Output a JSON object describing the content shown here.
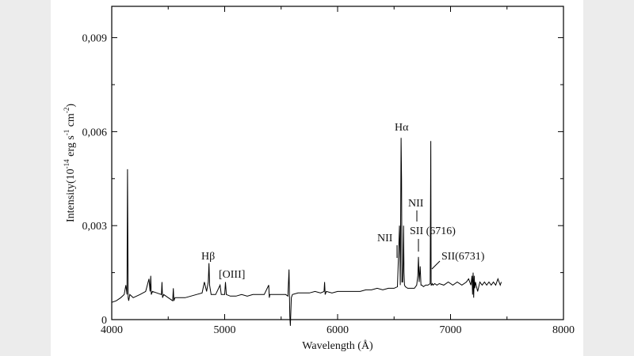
{
  "chart_data": {
    "type": "line",
    "title": "",
    "xlabel": "Wavelength (Å)",
    "ylabel_parts": [
      "Intensity(10",
      "-14",
      " erg s",
      "-1",
      " cm",
      "-2",
      ")"
    ],
    "xlim": [
      4000,
      8000
    ],
    "ylim": [
      0,
      0.01
    ],
    "x_ticks": [
      "4000",
      "5000",
      "6000",
      "7000",
      "8000"
    ],
    "x_tick_values": [
      4000,
      5000,
      6000,
      7000,
      8000
    ],
    "y_ticks": [
      "0",
      "0,003",
      "0,006",
      "0,009"
    ],
    "y_tick_values": [
      0,
      0.003,
      0.006,
      0.009
    ],
    "grid": false,
    "legend": "none",
    "series": [
      {
        "color": "#000000",
        "x": [
          4000,
          4040,
          4080,
          4110,
          4125,
          4135,
          4140,
          4145,
          4150,
          4160,
          4190,
          4220,
          4250,
          4300,
          4330,
          4340,
          4345,
          4350,
          4360,
          4400,
          4440,
          4445,
          4450,
          4460,
          4500,
          4540,
          4545,
          4550,
          4560,
          4600,
          4650,
          4700,
          4750,
          4800,
          4820,
          4840,
          4855,
          4861,
          4867,
          4880,
          4900,
          4920,
          4959,
          4970,
          5000,
          5007,
          5015,
          5050,
          5100,
          5150,
          5200,
          5250,
          5300,
          5350,
          5390,
          5395,
          5400,
          5450,
          5500,
          5540,
          5560,
          5570,
          5577,
          5582,
          5590,
          5600,
          5650,
          5700,
          5750,
          5800,
          5850,
          5880,
          5885,
          5890,
          5900,
          5950,
          6000,
          6050,
          6100,
          6150,
          6200,
          6250,
          6300,
          6350,
          6400,
          6450,
          6500,
          6530,
          6548,
          6555,
          6562,
          6566,
          6570,
          6576,
          6580,
          6584,
          6588,
          6592,
          6600,
          6620,
          6650,
          6680,
          6700,
          6710,
          6716,
          6722,
          6731,
          6738,
          6745,
          6760,
          6780,
          6800,
          6820,
          6825,
          6828,
          6832,
          6838,
          6845,
          6860,
          6880,
          6900,
          6940,
          6980,
          7020,
          7060,
          7100,
          7140,
          7160,
          7180,
          7190,
          7195,
          7200,
          7205,
          7210,
          7215,
          7220,
          7240,
          7260,
          7280,
          7300,
          7320,
          7340,
          7360,
          7380,
          7400,
          7420,
          7440,
          7450
        ],
        "y": [
          0.00055,
          0.0006,
          0.0007,
          0.0008,
          0.0011,
          0.0008,
          0.0048,
          0.0007,
          0.0006,
          0.0008,
          0.0007,
          0.00075,
          0.0008,
          0.0009,
          0.0013,
          0.0009,
          0.0014,
          0.0008,
          0.0009,
          0.00085,
          0.0008,
          0.0012,
          0.0007,
          0.0008,
          0.0007,
          0.0006,
          0.001,
          0.0006,
          0.0007,
          0.0007,
          0.0007,
          0.00075,
          0.0008,
          0.00085,
          0.0012,
          0.0009,
          0.0012,
          0.0018,
          0.0011,
          0.0008,
          0.0008,
          0.0008,
          0.0011,
          0.0008,
          0.0008,
          0.0012,
          0.0008,
          0.00075,
          0.00075,
          0.0008,
          0.00075,
          0.0008,
          0.0008,
          0.0008,
          0.0011,
          0.0007,
          0.0008,
          0.0008,
          0.0008,
          0.0008,
          0.00075,
          0.0016,
          0.0001,
          -0.0002,
          0.0007,
          0.0008,
          0.00085,
          0.00085,
          0.00085,
          0.0009,
          0.00085,
          0.0009,
          0.0012,
          0.0008,
          0.0009,
          0.00085,
          0.0009,
          0.0009,
          0.0009,
          0.0009,
          0.0009,
          0.00095,
          0.00095,
          0.001,
          0.00095,
          0.001,
          0.001,
          0.00105,
          0.003,
          0.0011,
          0.0058,
          0.0045,
          0.0012,
          0.0012,
          0.0018,
          0.003,
          0.0015,
          0.0011,
          0.00105,
          0.001,
          0.001,
          0.001,
          0.0011,
          0.0014,
          0.002,
          0.0012,
          0.0017,
          0.0011,
          0.0011,
          0.00105,
          0.0011,
          0.0011,
          0.00115,
          0.0057,
          0.0011,
          0.0011,
          0.00115,
          0.0011,
          0.00115,
          0.0011,
          0.00115,
          0.0011,
          0.0012,
          0.0011,
          0.0012,
          0.0011,
          0.0012,
          0.0013,
          0.0011,
          0.0014,
          0.0008,
          0.0015,
          0.0007,
          0.0014,
          0.001,
          0.0012,
          0.0009,
          0.0012,
          0.0011,
          0.0012,
          0.0011,
          0.0012,
          0.0011,
          0.0012,
          0.0011,
          0.0013,
          0.0011,
          0.0012
        ]
      }
    ],
    "annotations": {
      "hbeta": "Hβ",
      "oiii": "[OIII]",
      "halpha": "Hα",
      "nii_left": "NII",
      "nii_right": "NII",
      "sii_6716": "SII (6716)",
      "sii_6731": "SII(6731)"
    }
  }
}
